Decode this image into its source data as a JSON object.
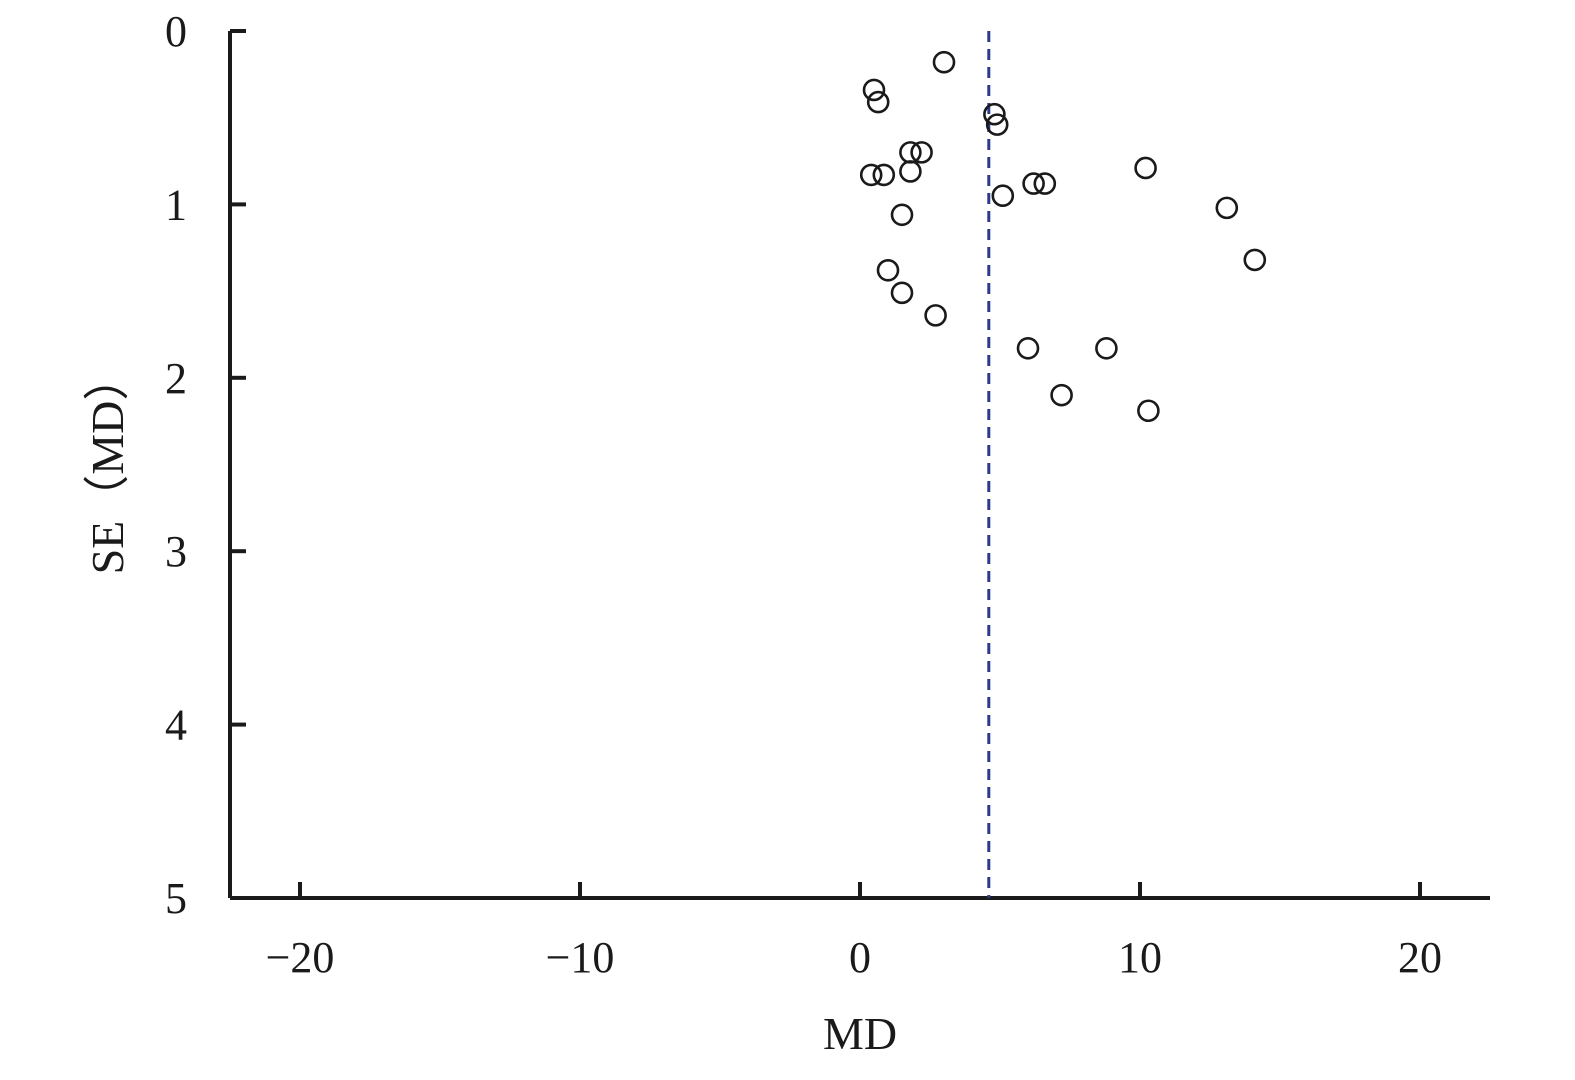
{
  "chart_data": {
    "type": "scatter",
    "title": "",
    "xlabel": "MD",
    "ylabel": "SE（MD）",
    "xlim": [
      -22.5,
      22.5
    ],
    "ylim": [
      0,
      5
    ],
    "y_inverted": true,
    "grid": false,
    "x_ticks": [
      -20,
      -10,
      0,
      10,
      20
    ],
    "x_tick_labels": [
      "−20",
      "−10",
      "0",
      "10",
      "20"
    ],
    "y_ticks": [
      0,
      1,
      2,
      3,
      4,
      5
    ],
    "y_tick_labels": [
      "0",
      "1",
      "2",
      "3",
      "4",
      "5"
    ],
    "reference_line": {
      "x": 4.6,
      "style": "dashed",
      "color": "#2a3b8f"
    },
    "marker_color": "#1a1a1a",
    "axis_color": "#1a1a1a",
    "points": [
      {
        "x": 3.0,
        "y": 0.18
      },
      {
        "x": 0.5,
        "y": 0.34
      },
      {
        "x": 0.65,
        "y": 0.41
      },
      {
        "x": 4.8,
        "y": 0.48
      },
      {
        "x": 4.9,
        "y": 0.54
      },
      {
        "x": 1.8,
        "y": 0.7
      },
      {
        "x": 2.2,
        "y": 0.7
      },
      {
        "x": 10.2,
        "y": 0.79
      },
      {
        "x": 0.4,
        "y": 0.83
      },
      {
        "x": 0.85,
        "y": 0.83
      },
      {
        "x": 1.8,
        "y": 0.81
      },
      {
        "x": 6.2,
        "y": 0.88
      },
      {
        "x": 6.6,
        "y": 0.88
      },
      {
        "x": 5.1,
        "y": 0.95
      },
      {
        "x": 13.1,
        "y": 1.02
      },
      {
        "x": 1.5,
        "y": 1.06
      },
      {
        "x": 14.1,
        "y": 1.32
      },
      {
        "x": 1.0,
        "y": 1.38
      },
      {
        "x": 1.5,
        "y": 1.51
      },
      {
        "x": 2.7,
        "y": 1.64
      },
      {
        "x": 6.0,
        "y": 1.83
      },
      {
        "x": 8.8,
        "y": 1.83
      },
      {
        "x": 7.2,
        "y": 2.1
      },
      {
        "x": 10.3,
        "y": 2.19
      }
    ]
  }
}
